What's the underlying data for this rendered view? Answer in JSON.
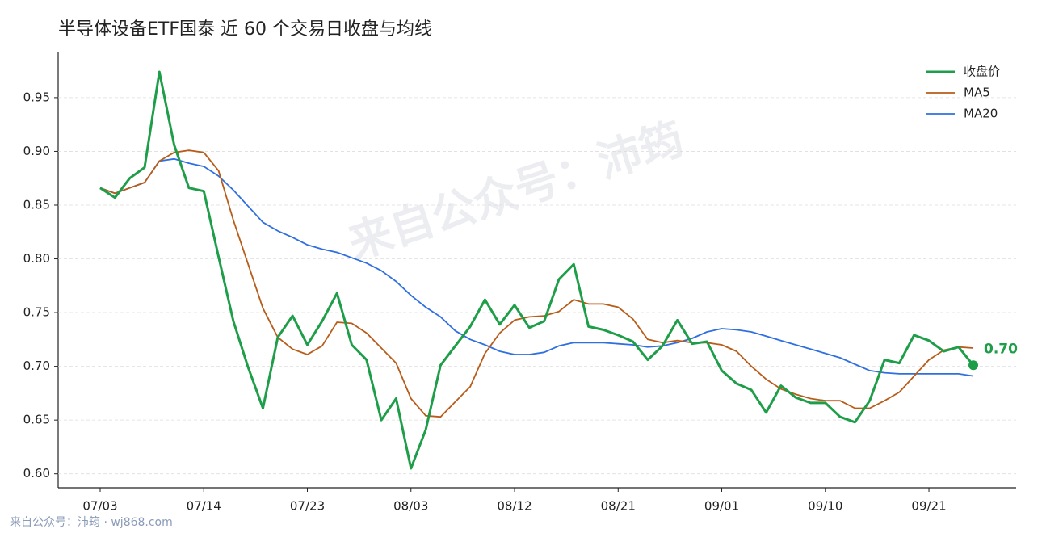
{
  "chart_data": {
    "type": "line",
    "title": "半导体设备ETF国泰 近 60 个交易日收盘与均线",
    "watermark": "来自公众号：沛筠",
    "footer": "来自公众号：沛筠 · wj868.com",
    "categories": [
      "07/03",
      null,
      null,
      null,
      null,
      null,
      null,
      "07/14",
      null,
      null,
      null,
      null,
      null,
      null,
      "07/23",
      null,
      null,
      null,
      null,
      null,
      null,
      "08/03",
      null,
      null,
      null,
      null,
      null,
      null,
      "08/12",
      null,
      null,
      null,
      null,
      null,
      null,
      "08/21",
      null,
      null,
      null,
      null,
      null,
      null,
      "09/01",
      null,
      null,
      null,
      null,
      null,
      null,
      "09/10",
      null,
      null,
      null,
      null,
      null,
      null,
      "09/21",
      null,
      null,
      null
    ],
    "series": [
      {
        "name": "收盘价",
        "color": "#1f9e4a",
        "width": 3,
        "values": [
          0.866,
          0.857,
          0.875,
          0.885,
          0.974,
          0.906,
          0.866,
          0.863,
          0.802,
          0.742,
          0.699,
          0.661,
          0.727,
          0.747,
          0.72,
          0.742,
          0.768,
          0.72,
          0.706,
          0.65,
          0.67,
          0.605,
          0.641,
          0.701,
          0.719,
          0.737,
          0.762,
          0.739,
          0.757,
          0.736,
          0.742,
          0.781,
          0.795,
          0.737,
          0.734,
          0.729,
          0.723,
          0.706,
          0.719,
          0.743,
          0.721,
          0.723,
          0.696,
          0.684,
          0.678,
          0.657,
          0.682,
          0.671,
          0.666,
          0.666,
          0.653,
          0.648,
          0.668,
          0.706,
          0.703,
          0.729,
          0.724,
          0.714,
          0.718,
          0.701
        ],
        "value_labels": [
          null,
          null,
          null,
          null,
          null,
          null,
          null,
          null,
          null,
          null,
          null,
          null,
          null,
          null,
          null,
          null,
          null,
          null,
          null,
          null,
          null,
          null,
          null,
          null,
          null,
          null,
          null,
          null,
          null,
          null,
          null,
          null,
          null,
          null,
          null,
          null,
          null,
          null,
          null,
          null,
          null,
          null,
          null,
          null,
          null,
          null,
          null,
          null,
          null,
          null,
          null,
          null,
          null,
          null,
          null,
          null,
          null,
          null,
          null,
          "0.70"
        ]
      },
      {
        "name": "MA5",
        "color": "#b85c1a",
        "width": 1.8,
        "values": [
          0.866,
          0.861,
          0.866,
          0.871,
          0.891,
          0.899,
          0.901,
          0.899,
          0.882,
          0.836,
          0.795,
          0.754,
          0.727,
          0.716,
          0.711,
          0.719,
          0.741,
          0.74,
          0.731,
          0.717,
          0.703,
          0.67,
          0.654,
          0.653,
          0.667,
          0.681,
          0.712,
          0.731,
          0.743,
          0.746,
          0.747,
          0.751,
          0.762,
          0.758,
          0.758,
          0.755,
          0.744,
          0.725,
          0.722,
          0.724,
          0.722,
          0.722,
          0.72,
          0.714,
          0.7,
          0.688,
          0.679,
          0.674,
          0.67,
          0.668,
          0.668,
          0.661,
          0.661,
          0.668,
          0.676,
          0.691,
          0.706,
          0.715,
          0.718,
          0.717
        ]
      },
      {
        "name": "MA20",
        "color": "#2f6fe0",
        "width": 1.8,
        "values": [
          0.866,
          0.861,
          0.866,
          0.871,
          0.891,
          0.893,
          0.889,
          0.886,
          0.877,
          0.864,
          0.849,
          0.834,
          0.826,
          0.82,
          0.813,
          0.809,
          0.806,
          0.801,
          0.796,
          0.789,
          0.779,
          0.766,
          0.755,
          0.746,
          0.733,
          0.725,
          0.72,
          0.714,
          0.711,
          0.711,
          0.713,
          0.719,
          0.722,
          0.722,
          0.722,
          0.721,
          0.72,
          0.718,
          0.719,
          0.722,
          0.726,
          0.732,
          0.735,
          0.734,
          0.732,
          0.728,
          0.724,
          0.72,
          0.716,
          0.712,
          0.708,
          0.702,
          0.696,
          0.694,
          0.693,
          0.693,
          0.693,
          0.693,
          0.693,
          0.691
        ]
      }
    ],
    "ylim": [
      0.587,
      0.992
    ],
    "yticks": [
      {
        "value": 0.6,
        "label": "0.60"
      },
      {
        "value": 0.65,
        "label": "0.65"
      },
      {
        "value": 0.7,
        "label": "0.70"
      },
      {
        "value": 0.75,
        "label": "0.75"
      },
      {
        "value": 0.8,
        "label": "0.80"
      },
      {
        "value": 0.85,
        "label": "0.85"
      },
      {
        "value": 0.9,
        "label": "0.90"
      },
      {
        "value": 0.95,
        "label": "0.95"
      }
    ],
    "grid": true,
    "legend": "upper right"
  }
}
